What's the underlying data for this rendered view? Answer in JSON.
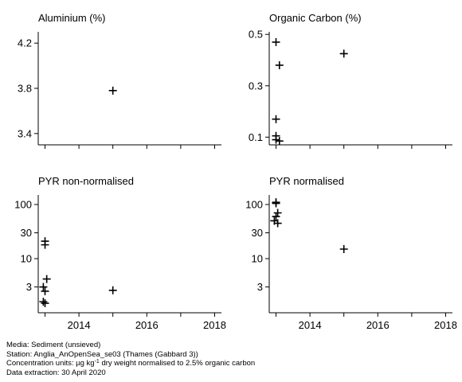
{
  "chart_data": [
    {
      "type": "scatter",
      "title": "Aluminium (%)",
      "ylim": [
        3.3,
        4.3
      ],
      "yscale": "linear",
      "yticks": [
        3.4,
        3.8,
        4.2
      ],
      "ytick_labels": [
        "3.4",
        "3.8",
        "4.2"
      ],
      "xlim": [
        2012.8,
        2018.2
      ],
      "xticks": [
        2013,
        2014,
        2015,
        2016,
        2017,
        2018
      ],
      "xtick_labels": [
        "",
        "",
        "",
        "",
        "",
        ""
      ],
      "points": [
        [
          2015.0,
          3.78
        ]
      ]
    },
    {
      "type": "scatter",
      "title": "Organic Carbon (%)",
      "ylim": [
        0.07,
        0.51
      ],
      "yscale": "linear",
      "yticks": [
        0.1,
        0.3,
        0.5
      ],
      "ytick_labels": [
        "0.1",
        "0.3",
        "0.5"
      ],
      "xlim": [
        2012.8,
        2018.2
      ],
      "xticks": [
        2013,
        2014,
        2015,
        2016,
        2017,
        2018
      ],
      "xtick_labels": [
        "",
        "",
        "",
        "",
        "",
        ""
      ],
      "points": [
        [
          2013.0,
          0.47
        ],
        [
          2013.1,
          0.38
        ],
        [
          2013.0,
          0.17
        ],
        [
          2013.0,
          0.105
        ],
        [
          2013.0,
          0.09
        ],
        [
          2013.1,
          0.085
        ],
        [
          2015.0,
          0.425
        ]
      ]
    },
    {
      "type": "scatter",
      "title": "PYR non-normalised",
      "ylim": [
        1,
        150
      ],
      "yscale": "log",
      "yticks": [
        3,
        10,
        30,
        100
      ],
      "ytick_labels": [
        "3",
        "10",
        "30",
        "100"
      ],
      "xlim": [
        2012.8,
        2018.2
      ],
      "xticks": [
        2013,
        2014,
        2015,
        2016,
        2017,
        2018
      ],
      "xtick_labels": [
        "",
        "2014",
        "",
        "2016",
        "",
        "2018"
      ],
      "points": [
        [
          2013.0,
          21
        ],
        [
          2013.0,
          18
        ],
        [
          2013.05,
          4.2
        ],
        [
          2012.95,
          3.0
        ],
        [
          2013.0,
          2.5
        ],
        [
          2012.95,
          1.6
        ],
        [
          2013.0,
          1.5
        ],
        [
          2015.0,
          2.6
        ]
      ]
    },
    {
      "type": "scatter",
      "title": "PYR normalised",
      "ylim": [
        1,
        150
      ],
      "yscale": "log",
      "yticks": [
        3,
        10,
        30,
        100
      ],
      "ytick_labels": [
        "3",
        "10",
        "30",
        "100"
      ],
      "xlim": [
        2012.8,
        2018.2
      ],
      "xticks": [
        2013,
        2014,
        2015,
        2016,
        2017,
        2018
      ],
      "xtick_labels": [
        "",
        "2014",
        "",
        "2016",
        "",
        "2018"
      ],
      "points": [
        [
          2013.0,
          110
        ],
        [
          2013.0,
          105
        ],
        [
          2013.05,
          70
        ],
        [
          2013.0,
          60
        ],
        [
          2012.95,
          50
        ],
        [
          2013.05,
          45
        ],
        [
          2015.0,
          15
        ]
      ]
    }
  ],
  "footer": {
    "media": "Media: Sediment (unsieved)",
    "station": "Station: Anglia_AnOpenSea_se03 (Thames (Gabbard 3))",
    "units_prefix": "Concentration units:  µg kg",
    "units_sup": "-1",
    "units_suffix": " dry weight normalised to 2.5% organic carbon",
    "extraction": "Data extraction: 30 April 2020"
  }
}
